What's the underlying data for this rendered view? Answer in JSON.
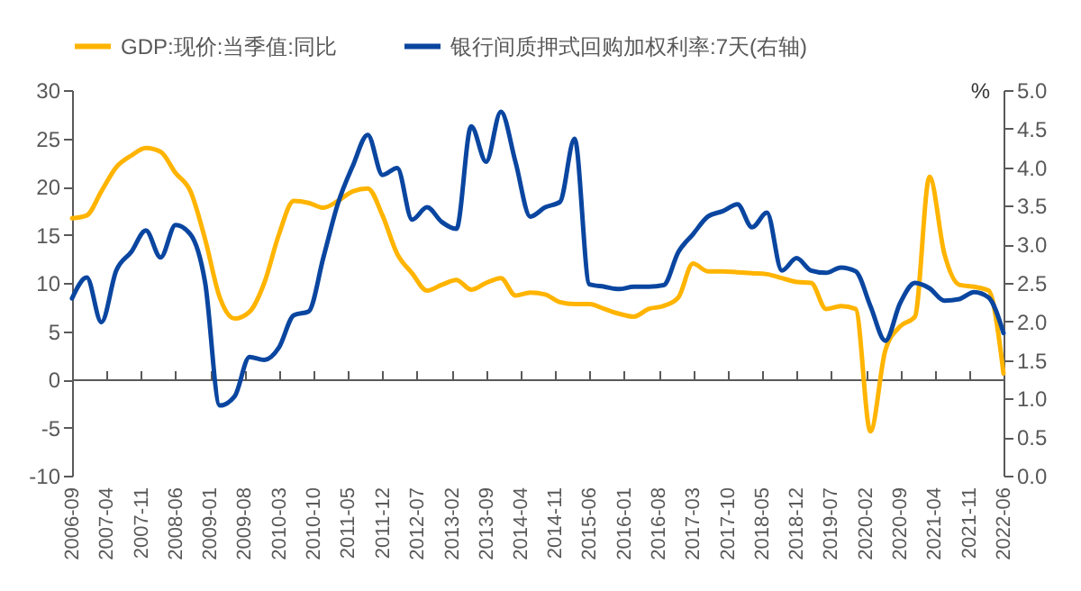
{
  "chart_data": {
    "type": "line",
    "y2label": "%",
    "legend": "top",
    "x": [
      "2006-09",
      "2006-12",
      "2007-03",
      "2007-06",
      "2007-09",
      "2007-12",
      "2008-03",
      "2008-06",
      "2008-09",
      "2008-12",
      "2009-03",
      "2009-06",
      "2009-09",
      "2009-12",
      "2010-03",
      "2010-06",
      "2010-09",
      "2010-12",
      "2011-03",
      "2011-06",
      "2011-09",
      "2011-12",
      "2012-03",
      "2012-06",
      "2012-09",
      "2012-12",
      "2013-03",
      "2013-06",
      "2013-09",
      "2013-12",
      "2014-03",
      "2014-06",
      "2014-09",
      "2014-12",
      "2015-03",
      "2015-06",
      "2015-09",
      "2015-12",
      "2016-03",
      "2016-06",
      "2016-09",
      "2016-12",
      "2017-03",
      "2017-06",
      "2017-09",
      "2017-12",
      "2018-03",
      "2018-06",
      "2018-09",
      "2018-12",
      "2019-03",
      "2019-06",
      "2019-09",
      "2019-12",
      "2020-03",
      "2020-06",
      "2020-09",
      "2020-12",
      "2021-03",
      "2021-06",
      "2021-09",
      "2021-12",
      "2022-03",
      "2022-06"
    ],
    "series": [
      {
        "name": "GDP:现价:当季值:同比",
        "color": "#ffb400",
        "values": [
          16.7,
          17,
          19.5,
          22,
          23.2,
          24,
          23.6,
          21.4,
          19.5,
          14.5,
          8.5,
          6.3,
          7,
          10,
          15,
          18.5,
          18.3,
          17.8,
          18.5,
          19.5,
          19.8,
          17,
          13,
          11,
          9.2,
          9.8,
          10.3,
          9.3,
          10,
          10.5,
          8.7,
          9,
          8.8,
          8,
          7.8,
          7.8,
          7.3,
          6.8,
          6.5,
          7.3,
          7.6,
          8.5,
          12,
          11.2,
          11.2,
          11.1,
          11,
          10.9,
          10.5,
          10.1,
          10,
          7.3,
          7.6,
          7.3,
          -5.4,
          3,
          5.5,
          6.5,
          21,
          13,
          9.8,
          9.6,
          9.2,
          0.6
        ]
      },
      {
        "name": "银行间质押式回购加权利率:7天(右轴)",
        "color": "#0a46a0",
        "axis": "y2",
        "values": [
          2.3,
          2.57,
          1.99,
          2.66,
          2.9,
          3.18,
          2.83,
          3.25,
          3.13,
          2.5,
          0.91,
          1.03,
          1.54,
          1.5,
          1.66,
          2.08,
          2.13,
          2.83,
          3.53,
          4.02,
          4.42,
          3.9,
          3.99,
          3.32,
          3.48,
          3.29,
          3.2,
          4.53,
          4.07,
          4.72,
          4.07,
          3.36,
          3.48,
          3.55,
          4.37,
          2.48,
          2.45,
          2.42,
          2.45,
          2.45,
          2.47,
          2.9,
          3.13,
          3.36,
          3.43,
          3.52,
          3.22,
          3.41,
          2.66,
          2.82,
          2.66,
          2.63,
          2.7,
          2.65,
          2.2,
          1.75,
          2.24,
          2.5,
          2.43,
          2.27,
          2.29,
          2.38,
          2.31,
          1.85
        ]
      }
    ],
    "xlim": [
      "2006-09",
      "2022-06"
    ],
    "xticks": [
      "2006-09",
      "2007-04",
      "2007-11",
      "2008-06",
      "2009-01",
      "2009-08",
      "2010-03",
      "2010-10",
      "2011-05",
      "2011-12",
      "2012-07",
      "2013-02",
      "2013-09",
      "2014-04",
      "2014-11",
      "2015-06",
      "2016-01",
      "2016-08",
      "2017-03",
      "2017-10",
      "2018-05",
      "2018-12",
      "2019-07",
      "2020-02",
      "2020-09",
      "2021-04",
      "2021-11",
      "2022-06"
    ],
    "ylim": [
      -10,
      30
    ],
    "yticks": [
      -10,
      -5,
      0,
      5,
      10,
      15,
      20,
      25,
      30
    ],
    "y2lim": [
      0,
      5
    ],
    "y2ticks": [
      {
        "value": 0,
        "label": "0.0"
      },
      {
        "value": 0.5,
        "label": "0.5"
      },
      {
        "value": 1,
        "label": "1.0"
      },
      {
        "value": 1.5,
        "label": "1.5"
      },
      {
        "value": 2,
        "label": "2.0"
      },
      {
        "value": 2.5,
        "label": "2.5"
      },
      {
        "value": 3,
        "label": "3.0"
      },
      {
        "value": 3.5,
        "label": "3.5"
      },
      {
        "value": 4,
        "label": "4.0"
      },
      {
        "value": 4.5,
        "label": "4.5"
      },
      {
        "value": 5,
        "label": "5.0"
      }
    ]
  }
}
